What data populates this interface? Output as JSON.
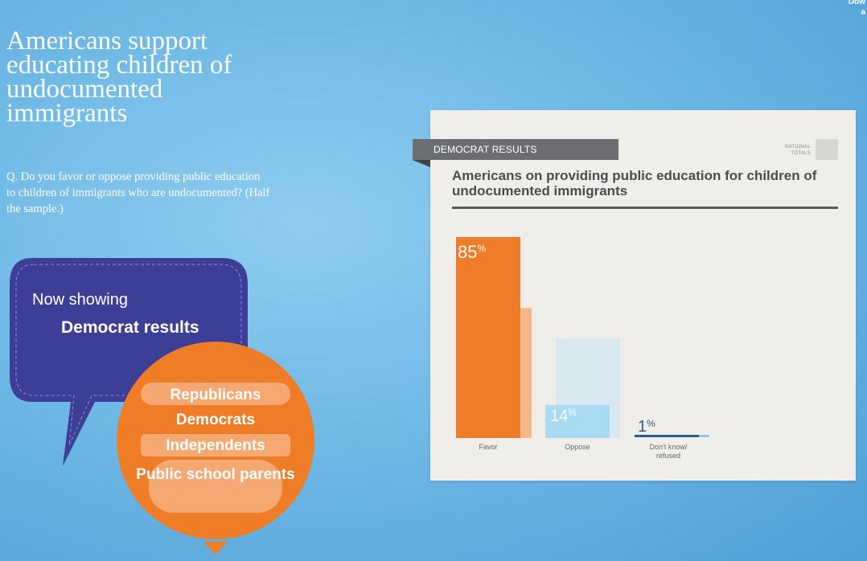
{
  "corner": {
    "line1": "Dow",
    "line2": "a"
  },
  "page": {
    "title": "Americans support educating children of undocumented immigrants",
    "question": "Q. Do you favor or oppose providing public education to children of immigrants who are undocumented? (Half the sample.)"
  },
  "selector": {
    "now_showing_label": "Now showing",
    "now_showing_value": "Democrat results",
    "options": [
      "Republicans",
      "Democrats",
      "Independents",
      "Public school parents"
    ],
    "selected_index": 1
  },
  "card": {
    "tab_label": "DEMOCRAT RESULTS",
    "national_label_1": "NATIONAL",
    "national_label_2": "TOTALS"
  },
  "colors": {
    "favor": "#ef7d27",
    "favor_national": "#f5b88a",
    "oppose": "#a9dbf3",
    "oppose_national": "#d7e8f1",
    "dk": "#2d5a86",
    "dk_national": "#9fc3dd",
    "bubble": "#3d3f97",
    "circle": "#ef7d27",
    "band": "#f5a872"
  },
  "chart_data": {
    "type": "bar",
    "title": "Americans on providing public education for children of undocumented immigrants",
    "categories": [
      "Favor",
      "Oppose",
      "Don't know/ refused"
    ],
    "category_lines": [
      [
        "Favor"
      ],
      [
        "Oppose"
      ],
      [
        "Don't know/",
        "refused"
      ]
    ],
    "series": [
      {
        "name": "Democrat results",
        "values": [
          85,
          14,
          1
        ],
        "labels": [
          "85",
          "14",
          "1"
        ]
      },
      {
        "name": "National totals",
        "values": [
          55,
          42,
          1
        ]
      }
    ],
    "percent_symbol": "%",
    "ylim": [
      0,
      85
    ]
  }
}
